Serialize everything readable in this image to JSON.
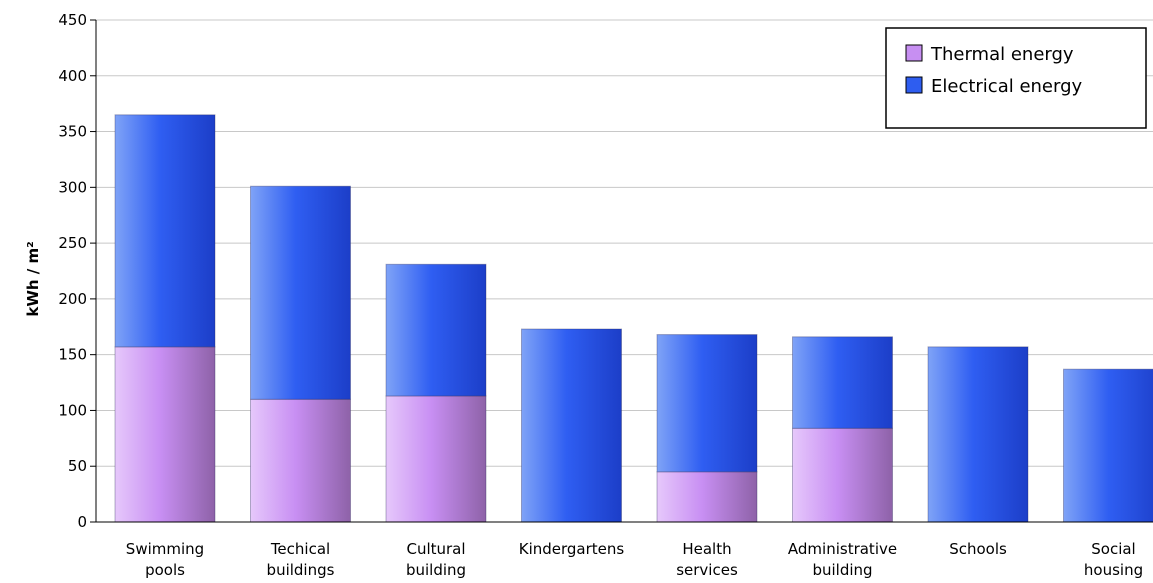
{
  "chart_data": {
    "type": "bar",
    "stacked": true,
    "title": "",
    "xlabel": "",
    "ylabel": "kWh / m²",
    "ylim": [
      0,
      450
    ],
    "yticks": [
      0,
      50,
      100,
      150,
      200,
      250,
      300,
      350,
      400,
      450
    ],
    "grid": true,
    "legend_position": "top-right",
    "categories": [
      [
        "Swimming",
        "pools"
      ],
      [
        "Techical",
        "buildings"
      ],
      [
        "Cultural",
        "building"
      ],
      [
        "Kindergartens"
      ],
      [
        "Health",
        "services"
      ],
      [
        "Administrative",
        "building"
      ],
      [
        "Schools"
      ],
      [
        "Social",
        "housing"
      ]
    ],
    "series": [
      {
        "name": "Thermal energy",
        "color": "#c78ff2",
        "values": [
          157,
          110,
          113,
          0,
          45,
          84,
          0,
          0
        ]
      },
      {
        "name": "Electrical energy",
        "color": "#2e5df0",
        "values": [
          208,
          191,
          118,
          173,
          123,
          82,
          157,
          137
        ]
      }
    ]
  }
}
